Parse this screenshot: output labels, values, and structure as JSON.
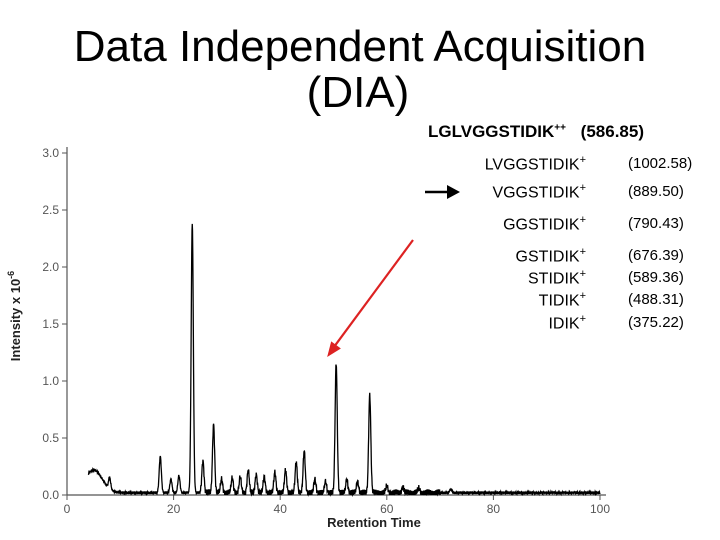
{
  "title": {
    "line1": "Data Independent Acquisition",
    "line2": "(DIA)"
  },
  "precursor": {
    "label": "LGLVGGSTIDIK",
    "charge": "++",
    "mz": "(586.85)"
  },
  "fragments": [
    {
      "label": "LVGGSTIDIK",
      "charge": "+",
      "mz": "(1002.58)",
      "highlighted": false
    },
    {
      "label": "VGGSTIDIK",
      "charge": "+",
      "mz": "(889.50)",
      "highlighted": true
    },
    {
      "label": "GGSTIDIK",
      "charge": "+",
      "mz": "(790.43)",
      "highlighted": false
    },
    {
      "label": "GSTIDIK",
      "charge": "+",
      "mz": "(676.39)",
      "highlighted": false
    },
    {
      "label": "STIDIK",
      "charge": "+",
      "mz": "(589.36)",
      "highlighted": false
    },
    {
      "label": "TIDIK",
      "charge": "+",
      "mz": "(488.31)",
      "highlighted": false
    },
    {
      "label": "IDIK",
      "charge": "+",
      "mz": "(375.22)",
      "highlighted": false
    }
  ],
  "colors": {
    "arrow": "#dd2222",
    "trace": "#000000",
    "axis": "#555555"
  },
  "chart_data": {
    "type": "line",
    "xlabel": "Retention Time",
    "ylabel": "Intensity x 10",
    "ylabel_exponent": "-6",
    "xlim": [
      0,
      100
    ],
    "ylim": [
      0,
      3.0
    ],
    "xticks": [
      "0",
      "20",
      "40",
      "60",
      "80",
      "100"
    ],
    "yticks": [
      "0.0",
      "0.5",
      "1.0",
      "1.5",
      "2.0",
      "2.5",
      "3.0"
    ],
    "baseline": 0.02,
    "broad_hump": {
      "center": 5,
      "width": 1.6,
      "height": 0.2
    },
    "peaks": [
      {
        "x": 8.0,
        "y": 0.1
      },
      {
        "x": 17.5,
        "y": 0.32
      },
      {
        "x": 19.5,
        "y": 0.12
      },
      {
        "x": 21.0,
        "y": 0.15
      },
      {
        "x": 23.5,
        "y": 2.37
      },
      {
        "x": 25.5,
        "y": 0.28
      },
      {
        "x": 27.5,
        "y": 0.6
      },
      {
        "x": 29.0,
        "y": 0.12
      },
      {
        "x": 31.0,
        "y": 0.13
      },
      {
        "x": 32.5,
        "y": 0.14
      },
      {
        "x": 34.0,
        "y": 0.2
      },
      {
        "x": 35.5,
        "y": 0.16
      },
      {
        "x": 37.0,
        "y": 0.14
      },
      {
        "x": 39.0,
        "y": 0.18
      },
      {
        "x": 41.0,
        "y": 0.2
      },
      {
        "x": 43.0,
        "y": 0.27
      },
      {
        "x": 44.5,
        "y": 0.37
      },
      {
        "x": 46.5,
        "y": 0.12
      },
      {
        "x": 48.5,
        "y": 0.1
      },
      {
        "x": 50.5,
        "y": 1.14
      },
      {
        "x": 52.5,
        "y": 0.12
      },
      {
        "x": 54.5,
        "y": 0.1
      },
      {
        "x": 56.8,
        "y": 0.86
      },
      {
        "x": 60.0,
        "y": 0.06
      },
      {
        "x": 63.0,
        "y": 0.05
      },
      {
        "x": 66.0,
        "y": 0.04
      },
      {
        "x": 72.0,
        "y": 0.03
      }
    ],
    "annotation": {
      "type": "arrow",
      "target_peak_x": 50.5,
      "target_peak_y": 1.14
    }
  }
}
